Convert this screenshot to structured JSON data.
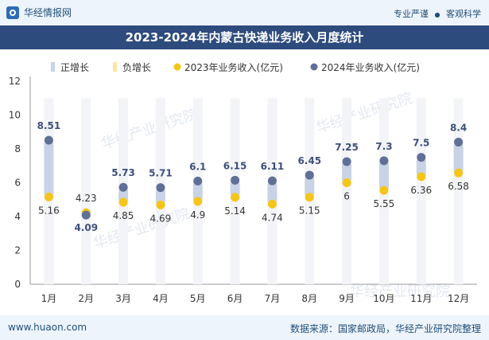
{
  "header": {
    "brand": "华经情报网",
    "tag_left": "专业严谨",
    "tag_sep": "●",
    "tag_right": "客观科学"
  },
  "footer": {
    "website": "www.huaon.com",
    "source": "数据来源：国家邮政局，华经产业研究院整理"
  },
  "colors": {
    "bar": "#c9d3e6",
    "dot2023": "#f5c518",
    "dot2024": "#5f6f96",
    "label2024": "#3d4f7c",
    "title_bg": "#2e4b7e"
  },
  "chart_data": {
    "type": "scatter",
    "title": "2023-2024年内蒙古快递业务收入月度统计",
    "categories": [
      "1月",
      "2月",
      "3月",
      "4月",
      "5月",
      "6月",
      "7月",
      "8月",
      "9月",
      "10月",
      "11月",
      "12月"
    ],
    "series": [
      {
        "name": "2023年业务收入(亿元)",
        "values": [
          5.16,
          4.23,
          4.85,
          4.69,
          4.9,
          5.14,
          4.74,
          5.15,
          6,
          5.55,
          6.36,
          6.58
        ]
      },
      {
        "name": "2024年业务收入(亿元)",
        "values": [
          8.51,
          4.09,
          5.73,
          5.71,
          6.1,
          6.15,
          6.11,
          6.45,
          7.25,
          7.3,
          7.5,
          8.4
        ]
      }
    ],
    "legend": [
      "正增长",
      "负增长",
      "2023年业务收入(亿元)",
      "2024年业务收入(亿元)"
    ],
    "ylim": [
      0,
      12
    ],
    "yticks": [
      0,
      2,
      4,
      6,
      8,
      10,
      12
    ],
    "watermark": "华经产业研究院"
  }
}
